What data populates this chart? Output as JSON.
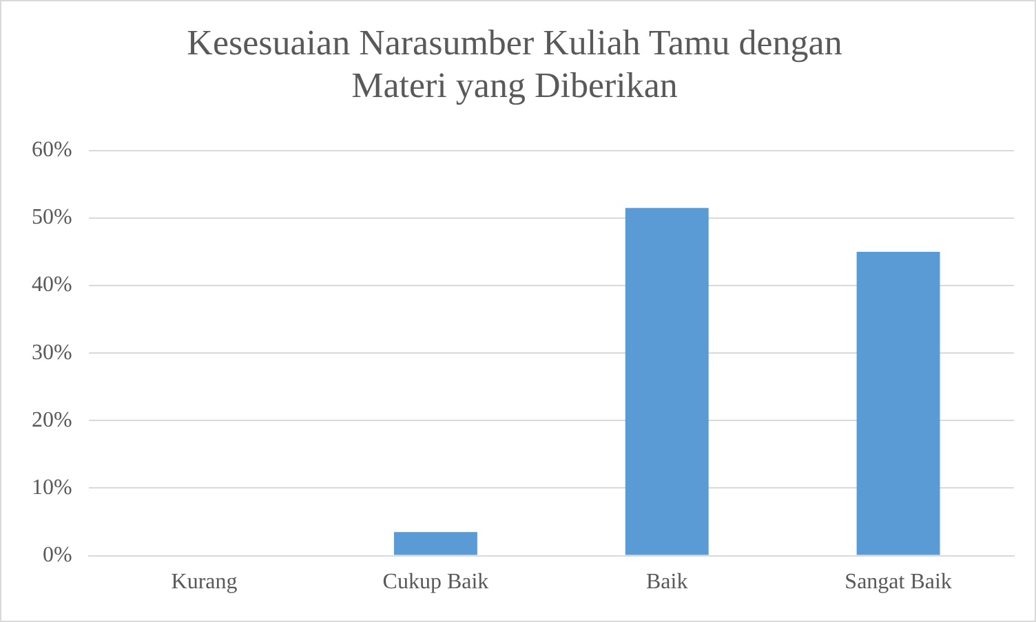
{
  "chart_data": {
    "type": "bar",
    "title": "Kesesuaian Narasumber Kuliah Tamu dengan Materi yang Diberikan",
    "categories": [
      "Kurang",
      "Cukup Baik",
      "Baik",
      "Sangat Baik"
    ],
    "values": [
      0,
      3.5,
      51.5,
      45
    ],
    "color": "#5b9bd5",
    "ylim": [
      0,
      60
    ],
    "yticks": [
      {
        "value": 0,
        "label": "0%"
      },
      {
        "value": 10,
        "label": "10%"
      },
      {
        "value": 20,
        "label": "20%"
      },
      {
        "value": 30,
        "label": "30%"
      },
      {
        "value": 40,
        "label": "40%"
      },
      {
        "value": 50,
        "label": "50%"
      },
      {
        "value": 60,
        "label": "60%"
      }
    ],
    "grid": "y",
    "legend": false
  }
}
